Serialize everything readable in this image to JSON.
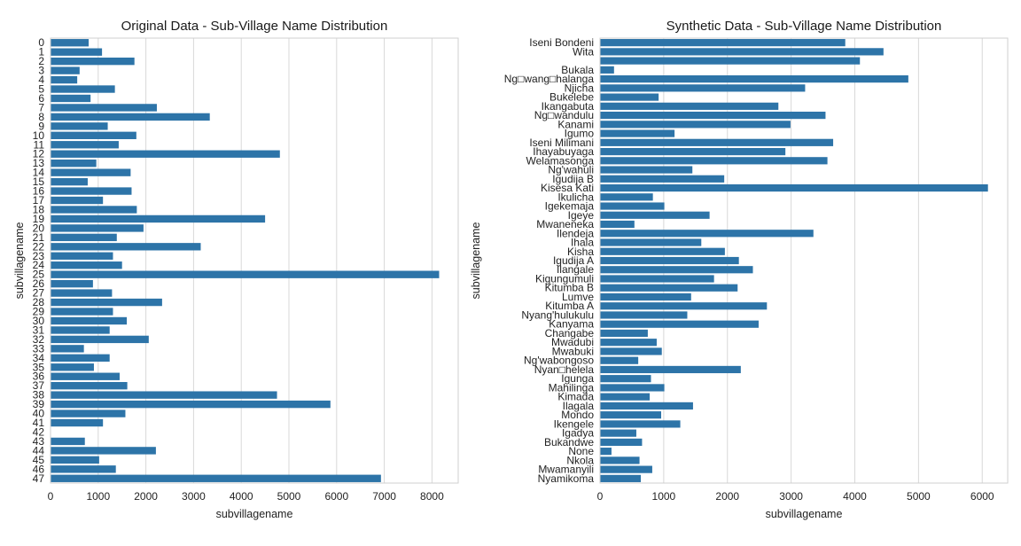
{
  "chart_data": [
    {
      "type": "bar",
      "orientation": "horizontal",
      "title": "Original Data - Sub-Village Name Distribution",
      "xlabel": "subvillagename",
      "ylabel": "subvillagename",
      "xlim": [
        0,
        8550
      ],
      "xticks": [
        0,
        1000,
        2000,
        3000,
        4000,
        5000,
        6000,
        7000,
        8000
      ],
      "grid": "x",
      "bar_color": "#2d74a8",
      "categories": [
        "0",
        "1",
        "2",
        "3",
        "4",
        "5",
        "6",
        "7",
        "8",
        "9",
        "10",
        "11",
        "12",
        "13",
        "14",
        "15",
        "16",
        "17",
        "18",
        "19",
        "20",
        "21",
        "22",
        "23",
        "24",
        "25",
        "26",
        "27",
        "28",
        "29",
        "30",
        "31",
        "32",
        "33",
        "34",
        "35",
        "36",
        "37",
        "38",
        "39",
        "40",
        "41",
        "42",
        "43",
        "44",
        "45",
        "46",
        "47"
      ],
      "values": [
        800,
        1080,
        1760,
        610,
        560,
        1350,
        840,
        2230,
        3340,
        1200,
        1800,
        1430,
        4810,
        960,
        1680,
        780,
        1700,
        1100,
        1810,
        4500,
        1950,
        1390,
        3150,
        1310,
        1500,
        8150,
        890,
        1290,
        2340,
        1310,
        1600,
        1240,
        2060,
        700,
        1240,
        910,
        1450,
        1610,
        4750,
        5870,
        1570,
        1100,
        0,
        720,
        2210,
        1020,
        1370,
        6930
      ]
    },
    {
      "type": "bar",
      "orientation": "horizontal",
      "title": "Synthetic Data - Sub-Village Name Distribution",
      "xlabel": "subvillagename",
      "ylabel": "subvillagename",
      "xlim": [
        0,
        6400
      ],
      "xticks": [
        0,
        1000,
        2000,
        3000,
        4000,
        5000,
        6000
      ],
      "grid": "x",
      "bar_color": "#2d74a8",
      "categories": [
        "Iseni Bondeni",
        "Wita",
        "",
        "Bukala",
        "Ng□wang□halanga",
        "Njicha",
        "Bukelebe",
        "Ikangabuta",
        "Ng□wandulu",
        "Kanami",
        "Igumo",
        "Iseni Milimani",
        "Ihayabuyaga",
        "Welamasonga",
        "Ng'wahuli",
        "Igudija B",
        "Kisesa Kati",
        "Ikulicha",
        "Igekemaja",
        "Igeye",
        "Mwaneneka",
        "Ilendeja",
        "Ihala",
        "Kisha",
        "Igudija A",
        "Ilangale",
        "Kigungumuli",
        "Kitumba B",
        "Lumve",
        "Kitumba A",
        "Nyang'hulukulu",
        "Kanyama",
        "Changabe",
        "Mwadubi",
        "Mwabuki",
        "Ng'wabongoso",
        "Nyan□helela",
        "Igunga",
        "Mahilinga",
        "Kimada",
        "Ilagala",
        "Mondo",
        "Ikengele",
        "Igadya",
        "Bukandwe",
        "None",
        "Nkola",
        "Mwamanyili",
        "Nyamikoma"
      ],
      "values": [
        3850,
        4450,
        4080,
        220,
        4840,
        3220,
        920,
        2800,
        3540,
        2990,
        1170,
        3660,
        2910,
        3570,
        1450,
        1950,
        6090,
        830,
        1010,
        1720,
        540,
        3350,
        1590,
        1960,
        2180,
        2400,
        1790,
        2160,
        1430,
        2620,
        1370,
        2490,
        750,
        890,
        970,
        600,
        2210,
        800,
        1010,
        780,
        1460,
        960,
        1260,
        570,
        660,
        180,
        620,
        820,
        640
      ]
    }
  ]
}
